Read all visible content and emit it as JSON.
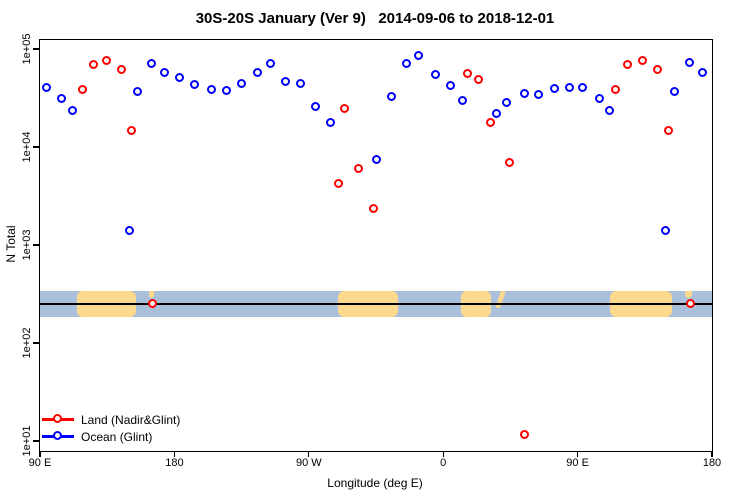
{
  "title": "30S-20S January (Ver 9)   2014-09-06 to 2018-12-01",
  "colors": {
    "land_series": "#ff0000",
    "ocean_series": "#0000ff",
    "strip_ocean": "#a9bfda",
    "strip_land": "#fcd98d",
    "axis": "#000000",
    "background": "#ffffff"
  },
  "chart_data": {
    "type": "scatter",
    "grid": false,
    "legend_position": "bottom-left-inside",
    "x_axis": {
      "label": "Longitude (deg E)",
      "scale": "linear",
      "range_deg": [
        90,
        540
      ],
      "note": "longitude wraps eastward: 90E to 180 to 90W to 0 to 90E to 180",
      "ticks": [
        {
          "label": "90 E",
          "deg": 90
        },
        {
          "label": "180",
          "deg": 180
        },
        {
          "label": "90 W",
          "deg": 270
        },
        {
          "label": "0",
          "deg": 360
        },
        {
          "label": "90 E",
          "deg": 450
        },
        {
          "label": "180",
          "deg": 540
        }
      ]
    },
    "y_axis": {
      "label": "N Total",
      "scale": "log",
      "range": [
        8,
        124000
      ],
      "ticks": [
        {
          "label": "1e+05",
          "value": 100000
        },
        {
          "label": "1e+04",
          "value": 10000
        },
        {
          "label": "1e+03",
          "value": 1000
        },
        {
          "label": "1e+02",
          "value": 100
        },
        {
          "label": "1e+01",
          "value": 10
        }
      ]
    },
    "series": [
      {
        "name": "Land (Nadir&Glint)",
        "color": "#ff0000",
        "marker": "open-circle",
        "points": [
          [
            119,
            38000
          ],
          [
            126,
            69000
          ],
          [
            135,
            75500
          ],
          [
            145,
            61000
          ],
          [
            152,
            14500
          ],
          [
            290,
            4200
          ],
          [
            294,
            24500
          ],
          [
            304,
            5900
          ],
          [
            314,
            2300
          ],
          [
            377,
            55500
          ],
          [
            384,
            48500
          ],
          [
            392,
            17500
          ],
          [
            405,
            6800
          ],
          [
            476,
            38000
          ],
          [
            484,
            69000
          ],
          [
            494,
            75500
          ],
          [
            504,
            61000
          ],
          [
            511,
            14500
          ],
          [
            166,
            250
          ],
          [
            526,
            250
          ],
          [
            415,
            11.5
          ]
        ]
      },
      {
        "name": "Ocean (Glint)",
        "color": "#0000ff",
        "marker": "open-circle",
        "points": [
          [
            95,
            40000
          ],
          [
            105,
            31000
          ],
          [
            112,
            23000
          ],
          [
            156,
            36000
          ],
          [
            165,
            70000
          ],
          [
            174,
            57000
          ],
          [
            184,
            51000
          ],
          [
            194,
            43000
          ],
          [
            205,
            38000
          ],
          [
            215,
            37000
          ],
          [
            225,
            44000
          ],
          [
            236,
            57000
          ],
          [
            245,
            70000
          ],
          [
            255,
            46000
          ],
          [
            265,
            44000
          ],
          [
            275,
            25500
          ],
          [
            285,
            17500
          ],
          [
            316,
            7300
          ],
          [
            326,
            32000
          ],
          [
            336,
            70000
          ],
          [
            344,
            85000
          ],
          [
            355,
            54000
          ],
          [
            365,
            42000
          ],
          [
            373,
            29500
          ],
          [
            396,
            21700
          ],
          [
            403,
            28000
          ],
          [
            415,
            35000
          ],
          [
            424,
            34000
          ],
          [
            435,
            39000
          ],
          [
            445,
            40000
          ],
          [
            454,
            40000
          ],
          [
            465,
            31000
          ],
          [
            472,
            23000
          ],
          [
            515,
            36000
          ],
          [
            525,
            72000
          ],
          [
            534,
            57000
          ],
          [
            150,
            1380
          ],
          [
            509,
            1380
          ]
        ]
      }
    ],
    "map_strip": {
      "description": "land/ocean mask band across all longitudes",
      "ocean_color": "#a9bfda",
      "land_color": "#fcd98d",
      "top_value": 340,
      "bottom_value": 185,
      "line_value": 250,
      "land_patches": [
        {
          "name": "australia",
          "from_deg": 115,
          "to_deg": 154,
          "shape": "full"
        },
        {
          "name": "new-caledonia",
          "from_deg": 163,
          "to_deg": 166.5,
          "shape": "top-dot"
        },
        {
          "name": "south-america",
          "from_deg": 289.5,
          "to_deg": 330,
          "shape": "full"
        },
        {
          "name": "southern-africa",
          "from_deg": 372,
          "to_deg": 392,
          "shape": "full"
        },
        {
          "name": "madagascar",
          "from_deg": 396.5,
          "to_deg": 402,
          "shape": "sliver"
        },
        {
          "name": "australia-wrap",
          "from_deg": 471.5,
          "to_deg": 513,
          "shape": "full"
        },
        {
          "name": "new-caledonia-wrap",
          "from_deg": 522,
          "to_deg": 526.5,
          "shape": "top-dot"
        }
      ]
    }
  },
  "legend": {
    "items": [
      {
        "label": "Land (Nadir&Glint)"
      },
      {
        "label": "Ocean (Glint)"
      }
    ]
  }
}
